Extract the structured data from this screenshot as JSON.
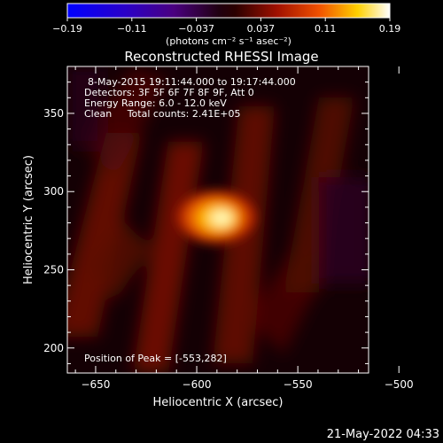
{
  "chart_data": {
    "type": "heatmap",
    "title": "Reconstructed RHESSI Image",
    "xlabel": "Heliocentric X (arcsec)",
    "ylabel": "Heliocentric Y (arcsec)",
    "xlim": [
      -664,
      -515
    ],
    "ylim": [
      184,
      380
    ],
    "xticks": [
      -650,
      -600,
      -550,
      -500
    ],
    "yticks": [
      200,
      250,
      300,
      350
    ],
    "colorbar": {
      "min": -0.19,
      "max": 0.19,
      "ticks": [
        "-0.19",
        "-0.11",
        "-0.037",
        "0.037",
        "0.11",
        "0.19"
      ],
      "unit_label": "(photons cm⁻² s⁻¹ asec⁻²)",
      "colormap": "black-blue-purple-red-yellow-white"
    },
    "annotations": [
      "8-May-2015 19:11:44.000 to 19:17:44.000",
      "Detectors: 3F 5F 6F 7F 8F 9F, Att 0",
      "Energy Range: 6.0 - 12.0 keV",
      "Clean     Total counts: 2.41E+05"
    ],
    "peak_label": "Position of Peak = [-553,282]",
    "peak": {
      "x": -553,
      "y": 282,
      "value": 0.19
    }
  },
  "footer": {
    "timestamp": "21-May-2022 04:33"
  }
}
